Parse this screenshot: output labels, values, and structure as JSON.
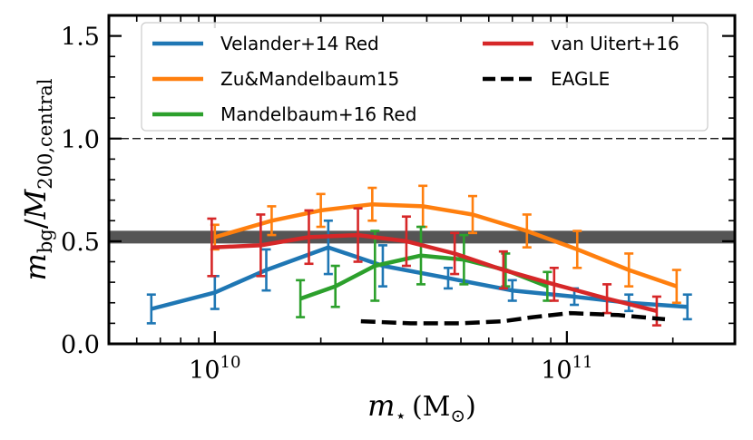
{
  "chart_data": {
    "type": "line",
    "xlabel": {
      "main": "m",
      "sub": "⋆",
      "unit": "(M",
      "unit_sub": "⊙",
      "unit_close": ")"
    },
    "ylabel": {
      "num": "m",
      "num_sub": "bg",
      "slash": "/",
      "den": "M",
      "den_sub": "200,central"
    },
    "xscale": "log",
    "xlim": [
      5000000000.0,
      300000000000.0
    ],
    "ylim": [
      0,
      1.6
    ],
    "xticks": [
      {
        "value": 10000000000.0,
        "base": "10",
        "exp": "10"
      },
      {
        "value": 100000000000.0,
        "base": "10",
        "exp": "11"
      }
    ],
    "yticks": [
      {
        "value": 0,
        "label": "0.0"
      },
      {
        "value": 0.5,
        "label": "0.5"
      },
      {
        "value": 1,
        "label": "1.0"
      },
      {
        "value": 1.5,
        "label": "1.5"
      }
    ],
    "reference_lines": [
      {
        "y": 1.0,
        "style": "dashed-thin",
        "color": "#000000"
      },
      {
        "y": 0.52,
        "style": "band",
        "color": "#555555"
      }
    ],
    "legend": {
      "placement": "top",
      "columns": 2
    },
    "series": [
      {
        "name": "Velander+14 Red",
        "color": "#1f77b4",
        "style": "solid",
        "x": [
          6600000000.0,
          10000000000.0,
          14000000000.0,
          21000000000.0,
          30000000000.0,
          46000000000.0,
          70000000000.0,
          105000000000.0,
          150000000000.0,
          220000000000.0
        ],
        "y": [
          0.17,
          0.25,
          0.36,
          0.47,
          0.38,
          0.32,
          0.26,
          0.23,
          0.2,
          0.18
        ],
        "err": [
          0.07,
          0.08,
          0.1,
          0.13,
          0.1,
          0.05,
          0.05,
          0.04,
          0.04,
          0.06
        ]
      },
      {
        "name": "Zu&Mandelbaum15",
        "color": "#ff7f0e",
        "style": "solid",
        "x": [
          10000000000.0,
          14500000000.0,
          20000000000.0,
          28000000000.0,
          39000000000.0,
          54000000000.0,
          77000000000.0,
          107000000000.0,
          150000000000.0,
          205000000000.0
        ],
        "y": [
          0.52,
          0.6,
          0.65,
          0.68,
          0.67,
          0.63,
          0.55,
          0.46,
          0.36,
          0.28
        ],
        "err": [
          0.06,
          0.07,
          0.08,
          0.08,
          0.1,
          0.09,
          0.08,
          0.09,
          0.08,
          0.08
        ]
      },
      {
        "name": "Mandelbaum+16 Red",
        "color": "#2ca02c",
        "style": "solid",
        "x": [
          17500000000.0,
          22000000000.0,
          28500000000.0,
          38500000000.0,
          51000000000.0,
          67000000000.0,
          88000000000.0
        ],
        "y": [
          0.22,
          0.28,
          0.38,
          0.43,
          0.41,
          0.36,
          0.28
        ],
        "err": [
          0.09,
          0.1,
          0.17,
          0.14,
          0.12,
          0.08,
          0.07
        ]
      },
      {
        "name": "van Uitert+16",
        "color": "#d62728",
        "style": "solid",
        "x": [
          9800000000.0,
          13500000000.0,
          18500000000.0,
          25500000000.0,
          35000000000.0,
          48000000000.0,
          66000000000.0,
          92000000000.0,
          130000000000.0,
          180000000000.0
        ],
        "y": [
          0.47,
          0.48,
          0.52,
          0.53,
          0.5,
          0.44,
          0.36,
          0.29,
          0.22,
          0.16
        ],
        "err": [
          0.14,
          0.15,
          0.13,
          0.13,
          0.12,
          0.1,
          0.09,
          0.08,
          0.07,
          0.07
        ]
      },
      {
        "name": "EAGLE",
        "color": "#000000",
        "style": "dashed",
        "x": [
          26000000000.0,
          36000000000.0,
          50000000000.0,
          66000000000.0,
          80000000000.0,
          102000000000.0,
          140000000000.0,
          190000000000.0
        ],
        "y": [
          0.11,
          0.1,
          0.1,
          0.11,
          0.13,
          0.15,
          0.14,
          0.12
        ],
        "err": null
      }
    ]
  }
}
